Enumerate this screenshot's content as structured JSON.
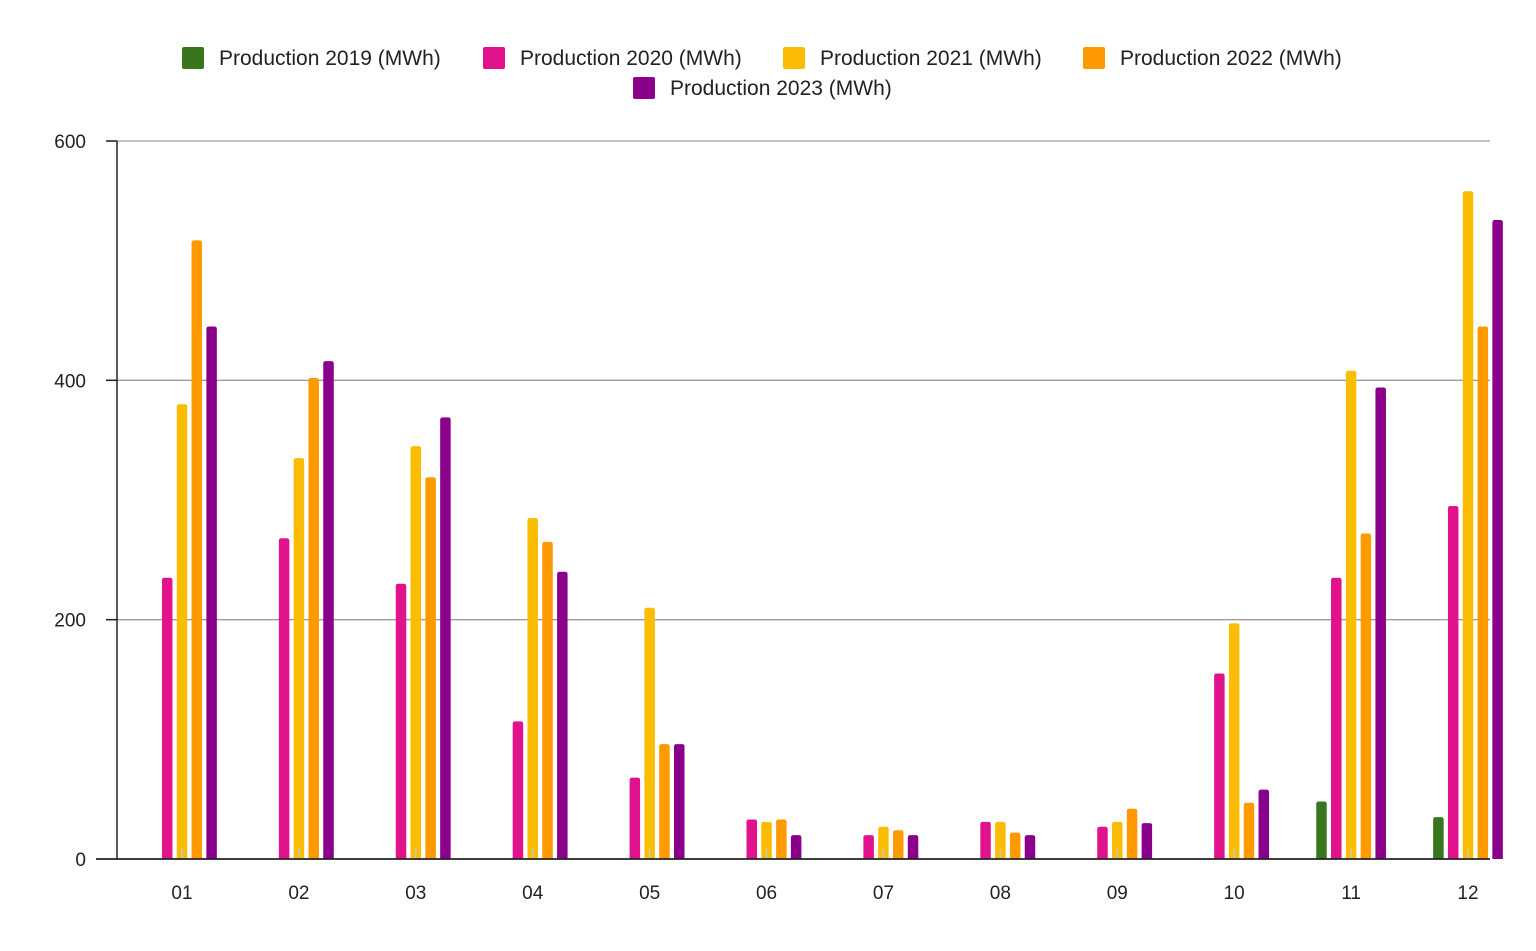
{
  "chart_data": {
    "type": "bar",
    "categories": [
      "01",
      "02",
      "03",
      "04",
      "05",
      "06",
      "07",
      "08",
      "09",
      "10",
      "11",
      "12"
    ],
    "series": [
      {
        "name": "Production 2019 (MWh)",
        "color": "#38761d",
        "values": [
          null,
          null,
          null,
          null,
          null,
          null,
          null,
          null,
          null,
          null,
          48,
          35
        ]
      },
      {
        "name": "Production 2020 (MWh)",
        "color": "#e0138c",
        "values": [
          235,
          268,
          230,
          115,
          68,
          33,
          20,
          31,
          27,
          155,
          235,
          295
        ]
      },
      {
        "name": "Production 2021 (MWh)",
        "color": "#fbbc04",
        "values": [
          380,
          335,
          345,
          285,
          210,
          31,
          27,
          31,
          31,
          197,
          408,
          558
        ]
      },
      {
        "name": "Production 2022 (MWh)",
        "color": "#ff9900",
        "values": [
          517,
          402,
          319,
          265,
          96,
          33,
          24,
          22,
          42,
          47,
          272,
          445
        ]
      },
      {
        "name": "Production 2023 (MWh)",
        "color": "#8b008b",
        "values": [
          445,
          416,
          369,
          240,
          96,
          20,
          20,
          20,
          30,
          58,
          394,
          534
        ]
      }
    ],
    "ylim": [
      0,
      600
    ],
    "yticks": [
      "0",
      "200",
      "400",
      "600"
    ],
    "title": "",
    "xlabel": "",
    "ylabel": "",
    "grid": true,
    "legend_position": "top"
  }
}
